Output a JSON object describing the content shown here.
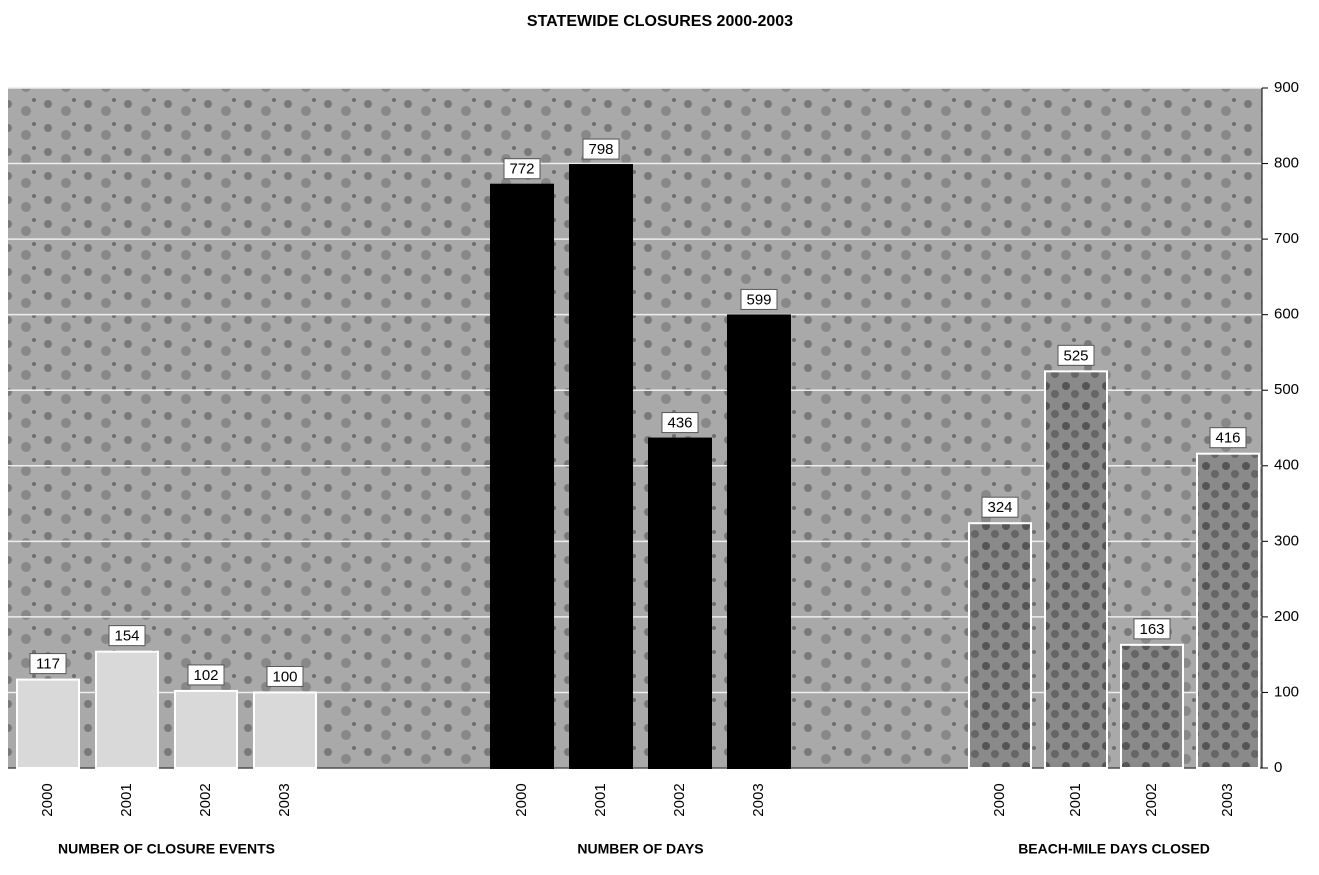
{
  "chart_data": {
    "type": "bar",
    "title": "STATEWIDE CLOSURES 2000-2003",
    "categories": [
      "2000",
      "2001",
      "2002",
      "2003"
    ],
    "series": [
      {
        "name": "NUMBER OF CLOSURE EVENTS",
        "color": "#d9d9d9",
        "values": [
          117,
          154,
          102,
          100
        ]
      },
      {
        "name": "NUMBER OF DAYS",
        "color": "#000000",
        "values": [
          772,
          798,
          436,
          599
        ]
      },
      {
        "name": "BEACH-MILE DAYS CLOSED",
        "color": "#8a8a8a",
        "values": [
          324,
          525,
          163,
          416
        ]
      }
    ],
    "ylim": [
      0,
      900
    ],
    "yticks": [
      0,
      100,
      200,
      300,
      400,
      500,
      600,
      700,
      800,
      900
    ],
    "grid": true
  }
}
